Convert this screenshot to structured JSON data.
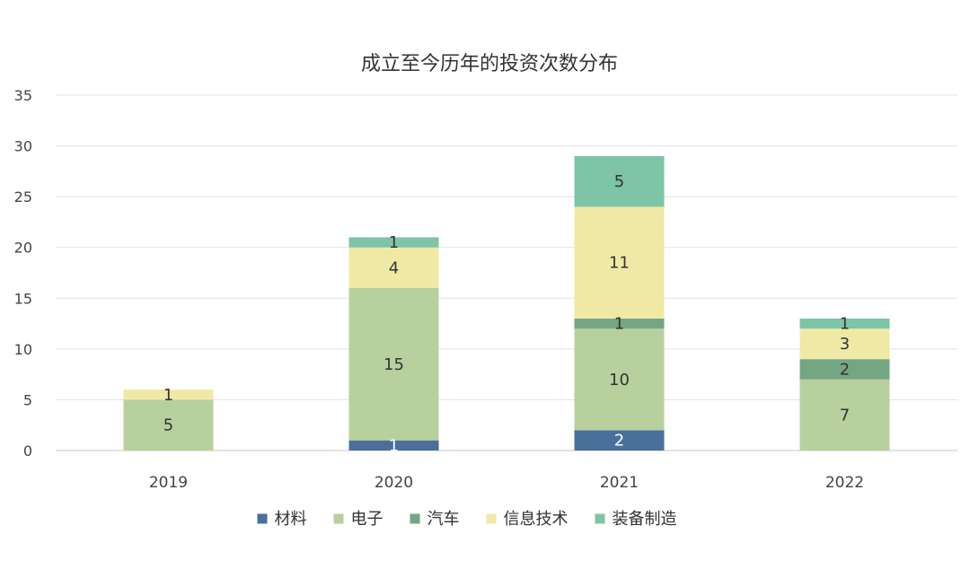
{
  "chart_data": {
    "type": "bar",
    "stacked": true,
    "title": "成立至今历年的投资次数分布",
    "categories": [
      "2019",
      "2020",
      "2021",
      "2022"
    ],
    "series": [
      {
        "name": "材料",
        "values": [
          0,
          1,
          2,
          0
        ],
        "color": "#4a6f9b",
        "label_color": "#ffffff"
      },
      {
        "name": "电子",
        "values": [
          5,
          15,
          10,
          7
        ],
        "color": "#b8d09d",
        "label_color": "#333333"
      },
      {
        "name": "汽车",
        "values": [
          0,
          0,
          1,
          2
        ],
        "color": "#74a684",
        "label_color": "#333333"
      },
      {
        "name": "信息技术",
        "values": [
          1,
          4,
          11,
          3
        ],
        "color": "#f0e9a6",
        "label_color": "#333333"
      },
      {
        "name": "装备制造",
        "values": [
          0,
          1,
          5,
          1
        ],
        "color": "#7ec4a6",
        "label_color": "#333333"
      }
    ],
    "ylim": [
      0,
      35
    ],
    "yticks": [
      0,
      5,
      10,
      15,
      20,
      25,
      30,
      35
    ],
    "grid": true,
    "legend_position": "bottom"
  }
}
